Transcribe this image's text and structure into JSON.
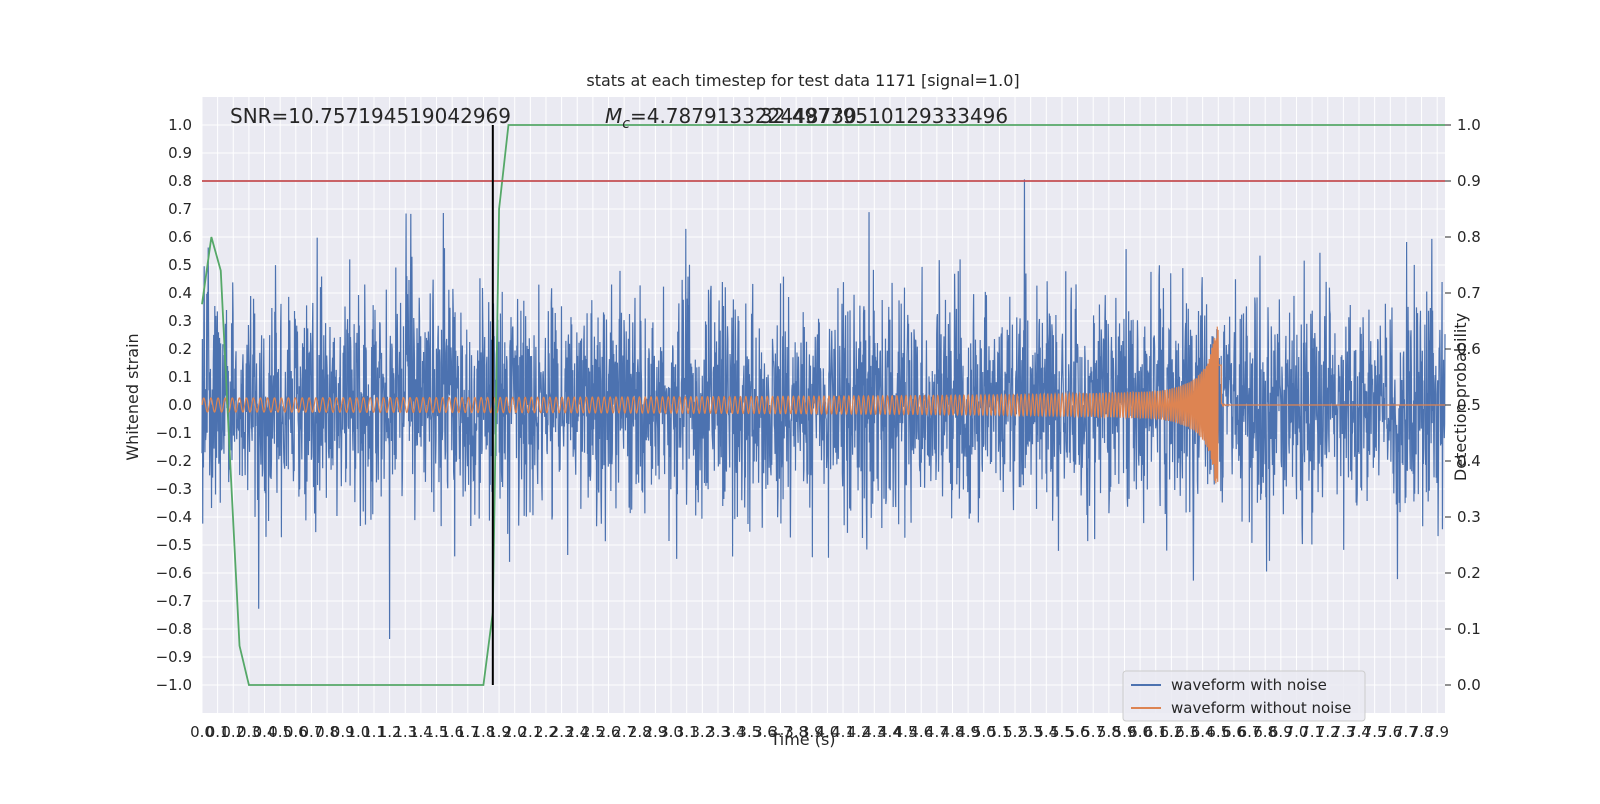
{
  "chart_data": {
    "type": "line",
    "title": "stats at each timestep for test data 1171 [signal=1.0]",
    "xlabel": "Time (s)",
    "ylabel_left": "Whitened strain",
    "ylabel_right": "Detection probability",
    "xlim": [
      0.0,
      7.95
    ],
    "ylim_left": [
      -1.1,
      1.1
    ],
    "ylim_right": [
      -0.05,
      1.05
    ],
    "x_ticks": [
      "0.0",
      "0.1",
      "0.2",
      "0.3",
      "0.4",
      "0.5",
      "0.6",
      "0.7",
      "0.8",
      "0.9",
      "1.0",
      "1.1",
      "1.2",
      "1.3",
      "1.4",
      "1.5",
      "1.6",
      "1.7",
      "1.8",
      "1.9",
      "2.0",
      "2.1",
      "2.2",
      "2.3",
      "2.4",
      "2.5",
      "2.6",
      "2.7",
      "2.8",
      "2.9",
      "3.0",
      "3.1",
      "3.2",
      "3.3",
      "3.4",
      "3.5",
      "3.6",
      "3.7",
      "3.8",
      "3.9",
      "4.0",
      "4.1",
      "4.2",
      "4.3",
      "4.4",
      "4.5",
      "4.6",
      "4.7",
      "4.8",
      "4.9",
      "5.0",
      "5.1",
      "5.2",
      "5.3",
      "5.4",
      "5.5",
      "5.6",
      "5.7",
      "5.8",
      "5.9",
      "6.0",
      "6.1",
      "6.2",
      "6.3",
      "6.4",
      "6.5",
      "6.6",
      "6.7",
      "6.8",
      "6.9",
      "7.0",
      "7.1",
      "7.2",
      "7.3",
      "7.4",
      "7.5",
      "7.6",
      "7.7",
      "7.8",
      "7.9"
    ],
    "y_ticks_left": [
      "−1.0",
      "−0.9",
      "−0.8",
      "−0.7",
      "−0.6",
      "−0.5",
      "−0.4",
      "−0.3",
      "−0.2",
      "−0.1",
      "0.0",
      "0.1",
      "0.2",
      "0.3",
      "0.4",
      "0.5",
      "0.6",
      "0.7",
      "0.8",
      "0.9",
      "1.0"
    ],
    "y_ticks_right": [
      "0.0",
      "0.1",
      "0.2",
      "0.3",
      "0.4",
      "0.5",
      "0.6",
      "0.7",
      "0.8",
      "0.9",
      "1.0"
    ],
    "grid": true,
    "annotations": {
      "snr": "SNR=10.757194519042969",
      "mc_symbol": "M",
      "mc_sub": "c",
      "mc_value": "=4.787913322448730",
      "mc_overlap": "32.49779510129333496"
    },
    "threshold": {
      "value": 0.9,
      "axis": "right",
      "color": "#c44e52"
    },
    "marker_time": 1.86,
    "merger_time": 6.52,
    "series": [
      {
        "name": "waveform with noise",
        "color": "#4c72b0",
        "axis": "left",
        "noise_std": 0.2
      },
      {
        "name": "waveform without noise",
        "color": "#dd8452",
        "axis": "left",
        "base_amplitude": 0.025,
        "peak_amplitude": 0.28
      },
      {
        "name": "",
        "color": "#55a868",
        "axis": "right",
        "x": [
          0.0,
          0.06,
          0.12,
          0.18,
          0.24,
          0.3,
          0.5,
          1.0,
          1.5,
          1.8,
          1.86,
          1.9,
          1.96,
          2.5,
          3.5,
          4.5,
          5.5,
          6.5,
          7.5,
          7.95
        ],
        "y": [
          0.68,
          0.8,
          0.74,
          0.4,
          0.07,
          0.0,
          0.0,
          0.0,
          0.0,
          0.0,
          0.13,
          0.85,
          1.0,
          1.0,
          1.0,
          1.0,
          1.0,
          1.0,
          1.0,
          1.0
        ]
      }
    ],
    "legend": {
      "location": "lower-right",
      "entries": [
        "waveform with noise",
        "waveform without noise"
      ]
    }
  }
}
